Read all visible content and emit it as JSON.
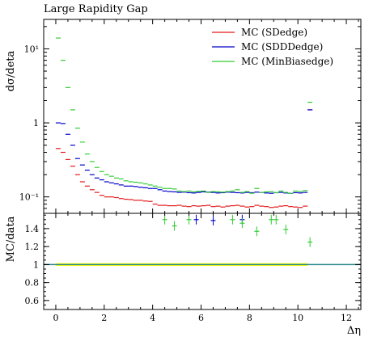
{
  "chart_data": {
    "type": "scatter",
    "title": "Large Rapidity Gap",
    "xlabel": "Δη",
    "ylabel_top": "dσ/deta",
    "ylabel_bottom": "MC/data",
    "xlim": [
      -0.5,
      12.6
    ],
    "top_ylim": [
      0.06,
      25
    ],
    "top_yscale": "log",
    "bottom_ylim": [
      0.5,
      1.57
    ],
    "x_ticks": [
      "0",
      "2",
      "4",
      "6",
      "8",
      "10",
      "12"
    ],
    "top_yticks": [
      {
        "value": 0.1,
        "label": "10⁻¹"
      },
      {
        "value": 1,
        "label": "1"
      },
      {
        "value": 10,
        "label": "10¹"
      }
    ],
    "bottom_yticks": [
      "0.6",
      "0.8",
      "1",
      "1.2",
      "1.4"
    ],
    "legend_position": "top-right",
    "series": [
      {
        "name": "MC (SDedge)",
        "color": "#e41a1c",
        "x": [
          0.1,
          0.3,
          0.5,
          0.7,
          0.9,
          1.1,
          1.3,
          1.5,
          1.7,
          1.9,
          2.1,
          2.3,
          2.5,
          2.7,
          2.9,
          3.1,
          3.3,
          3.5,
          3.7,
          3.9,
          4.1,
          4.3,
          4.5,
          4.7,
          4.9,
          5.1,
          5.3,
          5.5,
          5.7,
          5.9,
          6.1,
          6.3,
          6.5,
          6.7,
          6.9,
          7.1,
          7.3,
          7.5,
          7.7,
          7.9,
          8.1,
          8.3,
          8.5,
          8.7,
          8.9,
          9.1,
          9.3,
          9.5,
          9.7,
          9.9,
          10.1,
          10.3,
          10.5
        ],
        "values": [
          0.45,
          0.4,
          0.32,
          0.26,
          0.2,
          0.16,
          0.14,
          0.125,
          0.115,
          0.105,
          0.1,
          0.1,
          0.098,
          0.095,
          0.093,
          0.092,
          0.09,
          0.09,
          0.088,
          0.087,
          0.08,
          0.077,
          0.077,
          0.076,
          0.076,
          0.077,
          0.075,
          0.074,
          0.076,
          0.075,
          0.076,
          0.077,
          0.074,
          0.075,
          0.073,
          0.075,
          0.076,
          0.077,
          0.075,
          0.073,
          0.074,
          0.077,
          0.075,
          0.074,
          0.072,
          0.073,
          0.075,
          0.076,
          0.074,
          0.073,
          0.072,
          0.075,
          1.5
        ]
      },
      {
        "name": "MC (SDDDedge)",
        "color": "#0000cc",
        "x": [
          0.1,
          0.3,
          0.5,
          0.7,
          0.9,
          1.1,
          1.3,
          1.5,
          1.7,
          1.9,
          2.1,
          2.3,
          2.5,
          2.7,
          2.9,
          3.1,
          3.3,
          3.5,
          3.7,
          3.9,
          4.1,
          4.3,
          4.5,
          4.7,
          4.9,
          5.1,
          5.3,
          5.5,
          5.7,
          5.9,
          6.1,
          6.3,
          6.5,
          6.7,
          6.9,
          7.1,
          7.3,
          7.5,
          7.7,
          7.9,
          8.1,
          8.3,
          8.5,
          8.7,
          8.9,
          9.1,
          9.3,
          9.5,
          9.7,
          9.9,
          10.1,
          10.3,
          10.5
        ],
        "values": [
          1.0,
          0.98,
          0.7,
          0.5,
          0.33,
          0.27,
          0.23,
          0.2,
          0.18,
          0.17,
          0.16,
          0.155,
          0.15,
          0.145,
          0.14,
          0.14,
          0.138,
          0.135,
          0.133,
          0.13,
          0.13,
          0.125,
          0.12,
          0.118,
          0.117,
          0.115,
          0.116,
          0.114,
          0.113,
          0.115,
          0.117,
          0.116,
          0.115,
          0.113,
          0.114,
          0.116,
          0.115,
          0.114,
          0.113,
          0.115,
          0.114,
          0.116,
          0.115,
          0.113,
          0.112,
          0.114,
          0.115,
          0.113,
          0.112,
          0.114,
          0.113,
          0.115,
          1.5
        ]
      },
      {
        "name": "MC (MinBiasedge)",
        "color": "#33cc33",
        "x": [
          0.1,
          0.3,
          0.5,
          0.7,
          0.9,
          1.1,
          1.3,
          1.5,
          1.7,
          1.9,
          2.1,
          2.3,
          2.5,
          2.7,
          2.9,
          3.1,
          3.3,
          3.5,
          3.7,
          3.9,
          4.1,
          4.3,
          4.5,
          4.7,
          4.9,
          5.1,
          5.3,
          5.5,
          5.7,
          5.9,
          6.1,
          6.3,
          6.5,
          6.7,
          6.9,
          7.1,
          7.3,
          7.5,
          7.7,
          7.9,
          8.1,
          8.3,
          8.5,
          8.7,
          8.9,
          9.1,
          9.3,
          9.5,
          9.7,
          9.9,
          10.1,
          10.3,
          10.5
        ],
        "values": [
          14.0,
          7.0,
          3.0,
          1.5,
          0.85,
          0.55,
          0.38,
          0.3,
          0.25,
          0.22,
          0.2,
          0.19,
          0.18,
          0.175,
          0.165,
          0.16,
          0.158,
          0.155,
          0.15,
          0.145,
          0.14,
          0.135,
          0.13,
          0.13,
          0.128,
          0.12,
          0.118,
          0.12,
          0.117,
          0.119,
          0.12,
          0.115,
          0.118,
          0.117,
          0.116,
          0.118,
          0.12,
          0.125,
          0.115,
          0.118,
          0.112,
          0.13,
          0.115,
          0.117,
          0.118,
          0.114,
          0.12,
          0.115,
          0.112,
          0.12,
          0.118,
          0.122,
          1.9
        ]
      }
    ],
    "ratio": {
      "reference_value": 1,
      "band_x": [
        0.0,
        10.4
      ],
      "band_ylim": [
        0.985,
        1.015
      ],
      "band_color": "#ffff00",
      "reference_line_color": "#2a8a8a",
      "markers": [
        {
          "series": "MC (SDDDedge)",
          "x": 5.8,
          "value": 1.5
        },
        {
          "series": "MC (SDDDedge)",
          "x": 6.5,
          "value": 1.49
        },
        {
          "series": "MC (SDDDedge)",
          "x": 7.7,
          "value": 1.5
        },
        {
          "series": "MC (MinBiasedge)",
          "x": 4.5,
          "value": 1.5
        },
        {
          "series": "MC (MinBiasedge)",
          "x": 4.9,
          "value": 1.43
        },
        {
          "series": "MC (MinBiasedge)",
          "x": 5.5,
          "value": 1.5
        },
        {
          "series": "MC (MinBiasedge)",
          "x": 7.3,
          "value": 1.5
        },
        {
          "series": "MC (MinBiasedge)",
          "x": 7.7,
          "value": 1.46
        },
        {
          "series": "MC (MinBiasedge)",
          "x": 8.3,
          "value": 1.37
        },
        {
          "series": "MC (MinBiasedge)",
          "x": 8.9,
          "value": 1.5
        },
        {
          "series": "MC (MinBiasedge)",
          "x": 9.1,
          "value": 1.5
        },
        {
          "series": "MC (MinBiasedge)",
          "x": 9.5,
          "value": 1.39
        },
        {
          "series": "MC (MinBiasedge)",
          "x": 10.5,
          "value": 1.25
        }
      ]
    }
  }
}
